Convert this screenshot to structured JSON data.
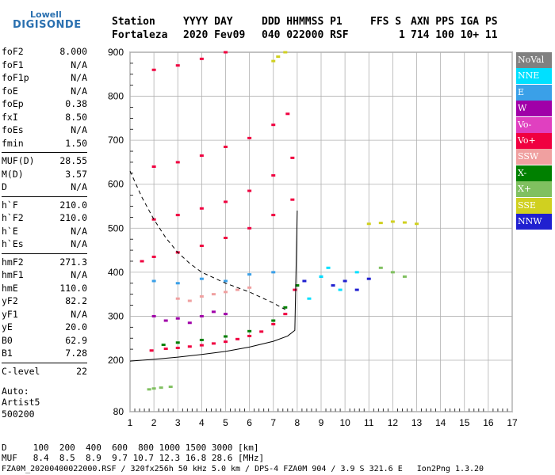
{
  "logo": {
    "top": "Lowell",
    "main": "DIGISONDE"
  },
  "header": {
    "labels": [
      "Station",
      "YYYY DAY",
      "DDD HHMMSS P1",
      "FFS S",
      "AXN PPS IGA PS"
    ],
    "values": [
      "Fortaleza",
      "2020 Fev09",
      "040 022000 RSF",
      "1",
      "714 100 10+ 11"
    ]
  },
  "params": [
    {
      "k": "foF2",
      "v": "8.000"
    },
    {
      "k": "foF1",
      "v": "N/A"
    },
    {
      "k": "foF1p",
      "v": "N/A"
    },
    {
      "k": "foE",
      "v": "N/A"
    },
    {
      "k": "foEp",
      "v": "0.38"
    },
    {
      "k": "fxI",
      "v": "8.50"
    },
    {
      "k": "foEs",
      "v": "N/A"
    },
    {
      "k": "fmin",
      "v": "1.50"
    },
    {
      "k": "MUF(D)",
      "v": "28.55"
    },
    {
      "k": "M(D)",
      "v": "3.57"
    },
    {
      "k": "D",
      "v": "N/A"
    },
    {
      "k": "h`F",
      "v": "210.0"
    },
    {
      "k": "h`F2",
      "v": "210.0"
    },
    {
      "k": "h`E",
      "v": "N/A"
    },
    {
      "k": "h`Es",
      "v": "N/A"
    },
    {
      "k": "hmF2",
      "v": "271.3"
    },
    {
      "k": "hmF1",
      "v": "N/A"
    },
    {
      "k": "hmE",
      "v": "110.0"
    },
    {
      "k": "yF2",
      "v": "82.2"
    },
    {
      "k": "yF1",
      "v": "N/A"
    },
    {
      "k": "yE",
      "v": "20.0"
    },
    {
      "k": "B0",
      "v": "62.9"
    },
    {
      "k": "B1",
      "v": "7.28"
    },
    {
      "k": "C-level",
      "v": "22"
    }
  ],
  "auto": [
    "Auto:",
    "Artist5",
    "500200"
  ],
  "legend": [
    {
      "label": "NoVal",
      "color": "#808080"
    },
    {
      "label": "NNE",
      "color": "#00e0ff"
    },
    {
      "label": "E",
      "color": "#3aa0e8"
    },
    {
      "label": "W",
      "color": "#a000a8"
    },
    {
      "label": "Vo-",
      "color": "#e040c0"
    },
    {
      "label": "Vo+",
      "color": "#f00040"
    },
    {
      "label": "SSW",
      "color": "#f0a0a0"
    },
    {
      "label": "X-",
      "color": "#008000"
    },
    {
      "label": "X+",
      "color": "#80c060"
    },
    {
      "label": "SSE",
      "color": "#d0d020"
    },
    {
      "label": "NNW",
      "color": "#2020d0"
    }
  ],
  "footer": {
    "d_row": "D     100  200  400  600  800 1000 1500 3000 [km]",
    "muf_row": "MUF   8.4  8.5  8.9  9.7 10.7 12.3 16.8 28.6 [MHz]",
    "file_row": "FZA0M_20200400022000.RSF / 320fx256h 50 kHz 5.0 km / DPS-4 FZA0M 904 / 3.9 S 321.6 E   Ion2Png 1.3.20"
  },
  "chart_data": {
    "type": "scatter",
    "x_ticks": [
      "1",
      "2",
      "3",
      "4",
      "5",
      "6",
      "7",
      "8",
      "9",
      "10",
      "11",
      "12",
      "13",
      "14",
      "15",
      "16",
      "17"
    ],
    "y_ticks": [
      "80",
      "200",
      "300",
      "400",
      "500",
      "600",
      "700",
      "800",
      "900"
    ],
    "xlim": [
      1,
      17
    ],
    "ylim": [
      80,
      900
    ],
    "grid": true,
    "legend_position": "right",
    "profile_curve": {
      "x": [
        1.0,
        2.0,
        3.0,
        4.0,
        5.0,
        6.0,
        7.0,
        7.6,
        7.9,
        8.0
      ],
      "y": [
        198,
        202,
        207,
        213,
        220,
        230,
        243,
        255,
        268,
        540
      ]
    },
    "dashed_curve": {
      "x": [
        1.0,
        1.5,
        2.0,
        2.5,
        3.0,
        3.5,
        4.0,
        5.0,
        6.0,
        7.0,
        7.5
      ],
      "y": [
        630,
        570,
        520,
        478,
        445,
        420,
        400,
        375,
        355,
        330,
        315
      ]
    },
    "traces": [
      {
        "series": "Vo+",
        "x": [
          1.9,
          2.5,
          3.0,
          3.5,
          4.0,
          4.5,
          5.0,
          5.5,
          6.0,
          6.5,
          7.0,
          7.5,
          7.9
        ],
        "y": [
          222,
          226,
          228,
          231,
          234,
          238,
          242,
          248,
          255,
          265,
          282,
          305,
          360
        ]
      },
      {
        "series": "X-",
        "x": [
          2.4,
          3.0,
          4.0,
          5.0,
          6.0,
          7.0,
          7.5,
          8.0
        ],
        "y": [
          235,
          240,
          246,
          254,
          266,
          290,
          320,
          370
        ]
      },
      {
        "series": "Vo+",
        "x": [
          1.5,
          2.0,
          3.0,
          4.0,
          5.0,
          6.0,
          7.0,
          7.8
        ],
        "y": [
          425,
          435,
          445,
          460,
          478,
          500,
          530,
          565
        ]
      },
      {
        "series": "Vo+",
        "x": [
          2.0,
          3.0,
          4.0,
          5.0,
          6.0,
          7.0,
          7.8
        ],
        "y": [
          520,
          530,
          545,
          560,
          585,
          620,
          660
        ]
      },
      {
        "series": "Vo+",
        "x": [
          2.0,
          3.0,
          4.0,
          5.0,
          6.0,
          7.0,
          7.6
        ],
        "y": [
          640,
          650,
          665,
          685,
          705,
          735,
          760
        ]
      },
      {
        "series": "Vo+",
        "x": [
          2.0,
          3.0,
          4.0,
          5.0
        ],
        "y": [
          860,
          870,
          885,
          900
        ]
      },
      {
        "series": "NNW",
        "x": [
          8.3,
          9.0,
          9.5,
          10.0,
          10.5,
          11.0
        ],
        "y": [
          380,
          390,
          370,
          380,
          360,
          385
        ]
      },
      {
        "series": "NNE",
        "x": [
          8.5,
          9.0,
          9.3,
          9.8,
          10.5
        ],
        "y": [
          340,
          390,
          410,
          360,
          400
        ]
      },
      {
        "series": "X+",
        "x": [
          11.5,
          12.0,
          12.5
        ],
        "y": [
          410,
          400,
          390
        ]
      },
      {
        "series": "SSE",
        "x": [
          11.0,
          11.5,
          12.0,
          12.5,
          13.0
        ],
        "y": [
          510,
          512,
          515,
          513,
          510
        ]
      },
      {
        "series": "W",
        "x": [
          2.0,
          2.5,
          3.0,
          3.5,
          4.0,
          4.5,
          5.0
        ],
        "y": [
          300,
          290,
          295,
          285,
          300,
          310,
          305
        ]
      },
      {
        "series": "E",
        "x": [
          2.0,
          3.0,
          4.0,
          5.0,
          6.0,
          7.0
        ],
        "y": [
          380,
          375,
          385,
          380,
          395,
          400
        ]
      },
      {
        "series": "SSW",
        "x": [
          3.0,
          3.5,
          4.0,
          4.5,
          5.0,
          5.5,
          6.0
        ],
        "y": [
          340,
          335,
          345,
          350,
          355,
          360,
          365
        ]
      },
      {
        "series": "X+",
        "x": [
          1.8,
          2.0,
          2.3,
          2.7
        ],
        "y": [
          132,
          134,
          136,
          138
        ]
      },
      {
        "series": "SSE",
        "x": [
          7.0,
          7.2,
          7.5
        ],
        "y": [
          880,
          890,
          900
        ]
      }
    ]
  }
}
